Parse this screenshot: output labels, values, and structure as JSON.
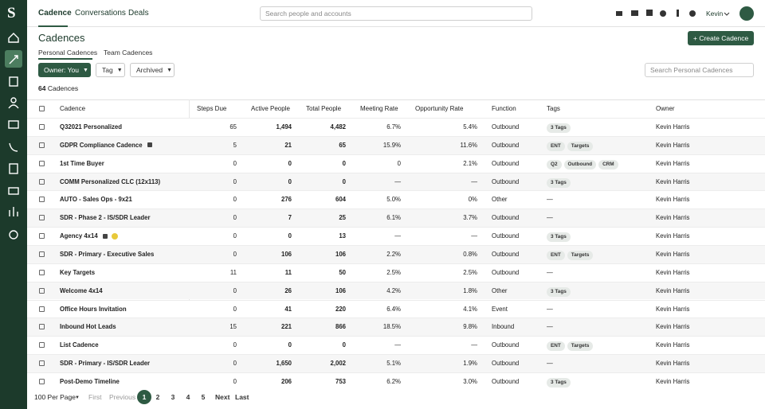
{
  "nav": {
    "logo": "S",
    "items": [
      "Cadence",
      "Conversations",
      "Deals"
    ],
    "search_placeholder": "Search people and accounts",
    "user": "Kevin"
  },
  "header": {
    "title": "Cadences",
    "button": "Create Cadence"
  },
  "tabs": [
    "Personal Cadences",
    "Team Cadences"
  ],
  "filters": [
    "Owner: You",
    "Tag",
    "Archived"
  ],
  "search_placeholder": "Search Personal Cadences",
  "count": {
    "number": "64",
    "label": "Cadences"
  },
  "table": {
    "columns": [
      "Cadence",
      "Steps Due",
      "Active People",
      "Total People",
      "Meeting Rate",
      "Opportunity Rate",
      "Function",
      "Tags",
      "Owner"
    ],
    "rows": [
      {
        "name": "Q32021 Personalized",
        "steps": "65",
        "active": "1,494",
        "total": "4,482",
        "meeting": "6.7%",
        "opportunity": "5.4%",
        "function": "Outbound",
        "tags": [
          "3 Tags"
        ],
        "owner": "Kevin Harris"
      },
      {
        "name": "GDPR Compliance Cadence",
        "locked": true,
        "steps": "5",
        "active": "21",
        "total": "65",
        "meeting": "15.9%",
        "opportunity": "11.6%",
        "function": "Outbound",
        "tags": [
          "ENT",
          "Targets"
        ],
        "owner": "Kevin Harris"
      },
      {
        "name": "1st Time Buyer",
        "steps": "0",
        "active": "0",
        "total": "0",
        "meeting": "0",
        "opportunity": "2.1%",
        "function": "Outbound",
        "tags": [
          "Q2",
          "Outbound",
          "CRM"
        ],
        "owner": "Kevin Harris"
      },
      {
        "name": "COMM Personalized CLC (12x113)",
        "steps": "0",
        "active": "0",
        "total": "0",
        "meeting": "—",
        "opportunity": "—",
        "function": "Outbound",
        "tags": [
          "3 Tags"
        ],
        "owner": "Kevin Harris"
      },
      {
        "name": "AUTO - Sales Ops - 9x21",
        "steps": "0",
        "active": "276",
        "total": "604",
        "meeting": "5.0%",
        "opportunity": "0%",
        "function": "Other",
        "tags": "—",
        "owner": "Kevin Harris"
      },
      {
        "name": "SDR - Phase 2 - IS/SDR Leader",
        "steps": "0",
        "active": "7",
        "total": "25",
        "meeting": "6.1%",
        "opportunity": "3.7%",
        "function": "Outbound",
        "tags": "—",
        "owner": "Kevin Harris"
      },
      {
        "name": "Agency 4x14",
        "locked": true,
        "warning": true,
        "steps": "0",
        "active": "0",
        "total": "13",
        "meeting": "—",
        "opportunity": "—",
        "function": "Outbound",
        "tags": [
          "3 Tags"
        ],
        "owner": "Kevin Harris"
      },
      {
        "name": "SDR - Primary - Executive Sales",
        "steps": "0",
        "active": "106",
        "total": "106",
        "meeting": "2.2%",
        "opportunity": "0.8%",
        "function": "Outbound",
        "tags": [
          "ENT",
          "Targets"
        ],
        "owner": "Kevin Harris"
      },
      {
        "name": "Key Targets",
        "steps": "11",
        "active": "11",
        "total": "50",
        "meeting": "2.5%",
        "opportunity": "2.5%",
        "function": "Outbound",
        "tags": "—",
        "owner": "Kevin Harris"
      },
      {
        "name": "Welcome 4x14",
        "steps": "0",
        "active": "26",
        "total": "106",
        "meeting": "4.2%",
        "opportunity": "1.8%",
        "function": "Other",
        "tags": [
          "3 Tags"
        ],
        "owner": "Kevin Harris"
      },
      {
        "name": "Office Hours Invitation",
        "steps": "0",
        "active": "41",
        "total": "220",
        "meeting": "6.4%",
        "opportunity": "4.1%",
        "function": "Event",
        "tags": "—",
        "owner": "Kevin Harris"
      },
      {
        "name": "Inbound Hot Leads",
        "steps": "15",
        "active": "221",
        "total": "866",
        "meeting": "18.5%",
        "opportunity": "9.8%",
        "function": "Inbound",
        "tags": "—",
        "owner": "Kevin Harris"
      },
      {
        "name": "List Cadence",
        "steps": "0",
        "active": "0",
        "total": "0",
        "meeting": "—",
        "opportunity": "—",
        "function": "Outbound",
        "tags": [
          "ENT",
          "Targets"
        ],
        "owner": "Kevin Harris"
      },
      {
        "name": "SDR - Primary - IS/SDR Leader",
        "steps": "0",
        "active": "1,650",
        "total": "2,002",
        "meeting": "5.1%",
        "opportunity": "1.9%",
        "function": "Outbound",
        "tags": "—",
        "owner": "Kevin Harris"
      },
      {
        "name": "Post-Demo Timeline",
        "steps": "0",
        "active": "206",
        "total": "753",
        "meeting": "6.2%",
        "opportunity": "3.0%",
        "function": "Outbound",
        "tags": [
          "3 Tags"
        ],
        "owner": "Kevin Harris"
      }
    ]
  },
  "pagination": {
    "per_page": "100 Per Page",
    "first": "First",
    "previous": "Previous",
    "pages": [
      "1",
      "2",
      "3",
      "4",
      "5"
    ],
    "next": "Next",
    "last": "Last"
  }
}
